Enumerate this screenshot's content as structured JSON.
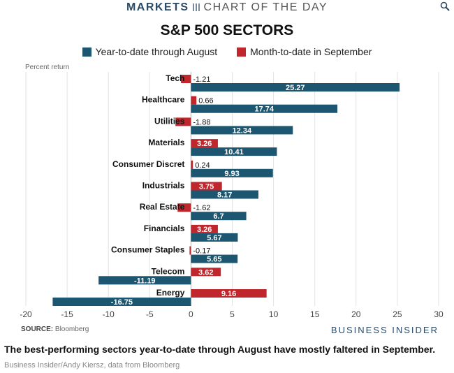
{
  "header": {
    "markets": "MARKETS",
    "chart_of_the_day": "CHART OF THE DAY"
  },
  "icons": {
    "zoom": "magnifier-icon"
  },
  "colors": {
    "ytd": "#1d5670",
    "mtd": "#c0272d",
    "grid": "#e2e2e2",
    "brand": "#2b4a66"
  },
  "source_label": "SOURCE:",
  "source_text": "Bloomberg",
  "brand": "BUSINESS INSIDER",
  "caption": "The best-performing sectors year-to-date through August  have mostly faltered  in September.",
  "credit": "Business Insider/Andy Kiersz, data from Bloomberg",
  "chart_data": {
    "type": "bar",
    "orientation": "horizontal",
    "title": "S&P 500 SECTORS",
    "ylabel": "Percent return",
    "categories": [
      "Tech",
      "Healthcare",
      "Utilities",
      "Materials",
      "Consumer Discret",
      "Industrials",
      "Real Estate",
      "Financials",
      "Consumer Staples",
      "Telecom",
      "Energy"
    ],
    "series": [
      {
        "name": "Year-to-date through August",
        "color": "#1d5670",
        "values": [
          25.27,
          17.74,
          12.34,
          10.41,
          9.93,
          8.17,
          6.7,
          5.67,
          5.65,
          -11.19,
          -16.75
        ],
        "labels": [
          "25.27",
          "17.74",
          "12.34",
          "10.41",
          "9.93",
          "8.17",
          "6.7",
          "5.67",
          "5.65",
          "-11.19",
          "-16.75"
        ]
      },
      {
        "name": "Month-to-date in September",
        "color": "#c0272d",
        "values": [
          -1.21,
          0.66,
          -1.88,
          3.26,
          0.24,
          3.75,
          -1.62,
          3.26,
          -0.17,
          3.62,
          9.16
        ],
        "labels": [
          "-1.21",
          "0.66",
          "-1.88",
          "3.26",
          "0.24",
          "3.75",
          "-1.62",
          "3.26",
          "-0.17",
          "3.62",
          "9.16"
        ]
      }
    ],
    "xlim": [
      -20,
      30
    ],
    "xticks": [
      "-20",
      "-15",
      "-10",
      "-5",
      "0",
      "5",
      "10",
      "15",
      "20",
      "25",
      "30"
    ],
    "grid": "vertical",
    "legend": "top-center"
  }
}
